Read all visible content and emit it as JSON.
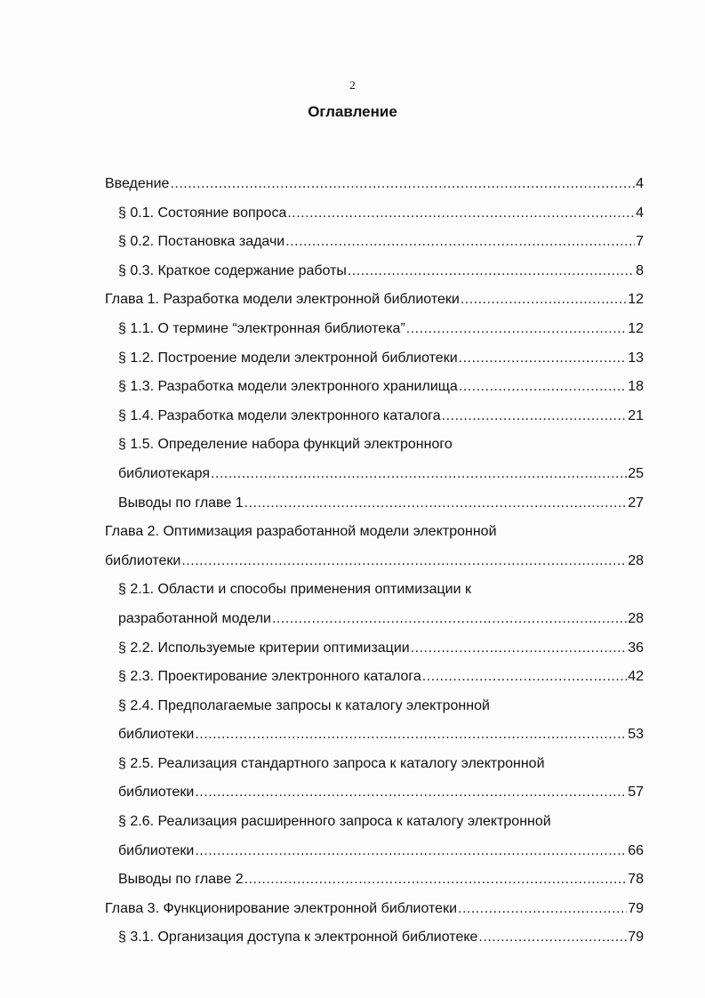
{
  "page_number": "2",
  "title": "Оглавление",
  "entries": [
    {
      "level": 0,
      "lines": [
        "Введение"
      ],
      "page": "4"
    },
    {
      "level": 1,
      "lines": [
        "§ 0.1. Состояние вопроса"
      ],
      "page": "4"
    },
    {
      "level": 1,
      "lines": [
        "§ 0.2. Постановка задачи"
      ],
      "page": "7"
    },
    {
      "level": 1,
      "lines": [
        "§ 0.3. Краткое содержание работы"
      ],
      "page": "8"
    },
    {
      "level": 0,
      "lines": [
        "Глава 1. Разработка модели электронной библиотеки"
      ],
      "page": "12"
    },
    {
      "level": 1,
      "lines": [
        "§ 1.1. О термине “электронная библиотека”"
      ],
      "page": "12"
    },
    {
      "level": 1,
      "lines": [
        "§ 1.2. Построение модели электронной библиотеки"
      ],
      "page": "13"
    },
    {
      "level": 1,
      "lines": [
        "§ 1.3. Разработка модели электронного хранилища"
      ],
      "page": "18"
    },
    {
      "level": 1,
      "lines": [
        "§ 1.4. Разработка модели электронного каталога"
      ],
      "page": "21"
    },
    {
      "level": 1,
      "lines": [
        "§ 1.5. Определение набора функций электронного",
        "библиотекаря"
      ],
      "page": "25"
    },
    {
      "level": 1,
      "lines": [
        "Выводы по главе 1"
      ],
      "page": "27"
    },
    {
      "level": 0,
      "lines": [
        "Глава 2. Оптимизация разработанной модели электронной",
        "библиотеки"
      ],
      "page": "28"
    },
    {
      "level": 1,
      "lines": [
        "§ 2.1. Области и способы применения оптимизации к",
        "разработанной модели"
      ],
      "page": "28"
    },
    {
      "level": 1,
      "lines": [
        "§ 2.2. Используемые критерии оптимизации"
      ],
      "page": "36"
    },
    {
      "level": 1,
      "lines": [
        "§ 2.3. Проектирование электронного каталога"
      ],
      "page": "42"
    },
    {
      "level": 1,
      "lines": [
        "§ 2.4. Предполагаемые запросы к каталогу электронной",
        "библиотеки"
      ],
      "page": "53"
    },
    {
      "level": 1,
      "lines": [
        "§ 2.5. Реализация стандартного запроса к каталогу электронной",
        "библиотеки"
      ],
      "page": "57"
    },
    {
      "level": 1,
      "lines": [
        "§ 2.6. Реализация расширенного запроса к каталогу электронной",
        "библиотеки"
      ],
      "page": "66"
    },
    {
      "level": 1,
      "lines": [
        "Выводы по главе 2"
      ],
      "page": "78"
    },
    {
      "level": 0,
      "lines": [
        "Глава 3. Функционирование электронной библиотеки"
      ],
      "page": "79"
    },
    {
      "level": 1,
      "lines": [
        "§ 3.1. Организация доступа к электронной библиотеке"
      ],
      "page": "79"
    }
  ]
}
